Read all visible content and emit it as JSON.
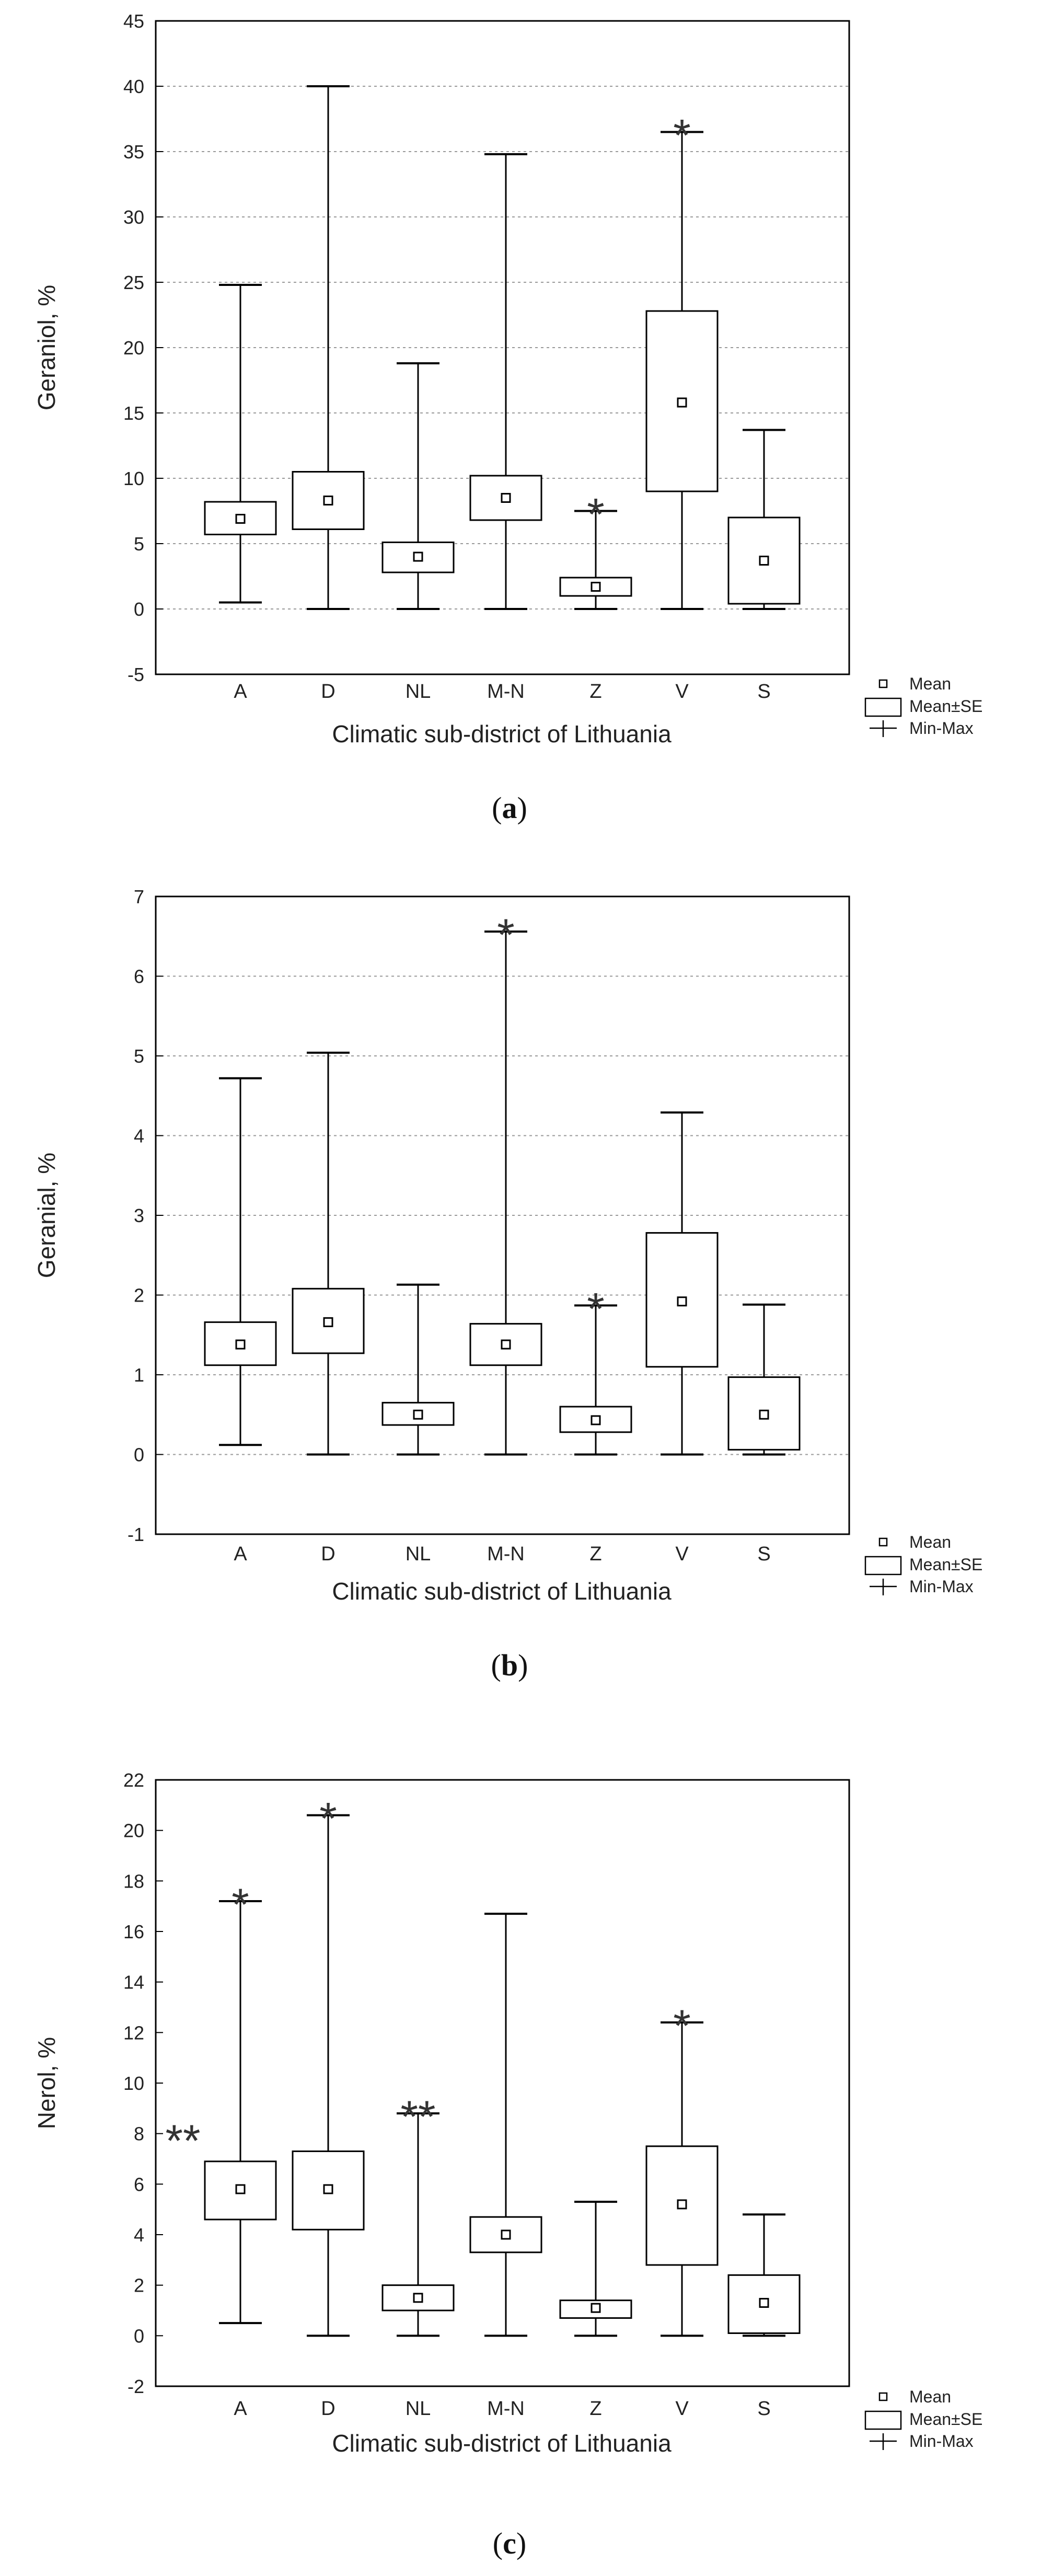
{
  "chart_data": [
    {
      "type": "boxplot",
      "caption": "(a)",
      "xlabel": "Climatic sub-district of Lithuania",
      "ylabel": "Geraniol, %",
      "ylim": [
        -5,
        45
      ],
      "yticks": [
        -5,
        0,
        5,
        10,
        15,
        20,
        25,
        30,
        35,
        40,
        45
      ],
      "grid": true,
      "legend": {
        "position": "bottom-right",
        "entries": [
          "Mean",
          "Mean±SE",
          "Min-Max"
        ]
      },
      "categories": [
        "A",
        "D",
        "NL",
        "M-N",
        "Z",
        "V",
        "S"
      ],
      "mean": [
        6.9,
        8.3,
        4.0,
        8.5,
        1.7,
        15.8,
        3.7
      ],
      "se_low": [
        5.7,
        6.1,
        2.8,
        6.8,
        1.0,
        9.0,
        0.4
      ],
      "se_high": [
        8.2,
        10.5,
        5.1,
        10.2,
        2.4,
        22.8,
        7.0
      ],
      "min": [
        0.5,
        0.0,
        0.0,
        0.0,
        0.0,
        0.0,
        0.0
      ],
      "max": [
        24.8,
        40.0,
        18.8,
        34.8,
        7.5,
        36.5,
        13.7
      ],
      "annotations": [
        {
          "category": "Z",
          "text": "*"
        },
        {
          "category": "V",
          "text": "*"
        }
      ]
    },
    {
      "type": "boxplot",
      "caption": "(b)",
      "xlabel": "Climatic sub-district of Lithuania",
      "ylabel": "Geranial, %",
      "ylim": [
        -1,
        7
      ],
      "yticks": [
        -1,
        0,
        1,
        2,
        3,
        4,
        5,
        6,
        7
      ],
      "grid": true,
      "legend": {
        "position": "bottom-right",
        "entries": [
          "Mean",
          "Mean±SE",
          "Min-Max"
        ]
      },
      "categories": [
        "A",
        "D",
        "NL",
        "M-N",
        "Z",
        "V",
        "S"
      ],
      "mean": [
        1.38,
        1.66,
        0.5,
        1.38,
        0.43,
        1.92,
        0.5
      ],
      "se_low": [
        1.12,
        1.27,
        0.37,
        1.12,
        0.28,
        1.1,
        0.06
      ],
      "se_high": [
        1.66,
        2.08,
        0.65,
        1.64,
        0.6,
        2.78,
        0.97
      ],
      "min": [
        0.12,
        0.0,
        0.0,
        0.0,
        0.0,
        0.0,
        0.0
      ],
      "max": [
        4.72,
        5.04,
        2.13,
        6.56,
        1.87,
        4.29,
        1.88
      ],
      "annotations": [
        {
          "category": "M-N",
          "text": "*"
        },
        {
          "category": "Z",
          "text": "*"
        }
      ]
    },
    {
      "type": "boxplot",
      "caption": "(c)",
      "xlabel": "Climatic sub-district of Lithuania",
      "ylabel": "Nerol, %",
      "ylim": [
        -2,
        22
      ],
      "yticks": [
        -2,
        0,
        2,
        4,
        6,
        8,
        10,
        12,
        14,
        16,
        18,
        20,
        22
      ],
      "grid": false,
      "legend": {
        "position": "bottom-right",
        "entries": [
          "Mean",
          "Mean±SE",
          "Min-Max"
        ]
      },
      "categories": [
        "A",
        "D",
        "NL",
        "M-N",
        "Z",
        "V",
        "S"
      ],
      "mean": [
        5.8,
        5.8,
        1.5,
        4.0,
        1.1,
        5.2,
        1.3
      ],
      "se_low": [
        4.6,
        4.2,
        1.0,
        3.3,
        0.7,
        2.8,
        0.1
      ],
      "se_high": [
        6.9,
        7.3,
        2.0,
        4.7,
        1.4,
        7.5,
        2.4
      ],
      "min": [
        0.5,
        0.0,
        0.0,
        0.0,
        0.0,
        0.0,
        0.0
      ],
      "max": [
        17.2,
        20.6,
        8.8,
        16.7,
        5.3,
        12.4,
        4.8
      ],
      "annotations": [
        {
          "category": "A",
          "text": "*",
          "at": "max"
        },
        {
          "category": "A",
          "text": "**",
          "at": "left"
        },
        {
          "category": "D",
          "text": "*",
          "at": "max"
        },
        {
          "category": "NL",
          "text": "**",
          "at": "max"
        },
        {
          "category": "V",
          "text": "*",
          "at": "max"
        }
      ]
    }
  ]
}
